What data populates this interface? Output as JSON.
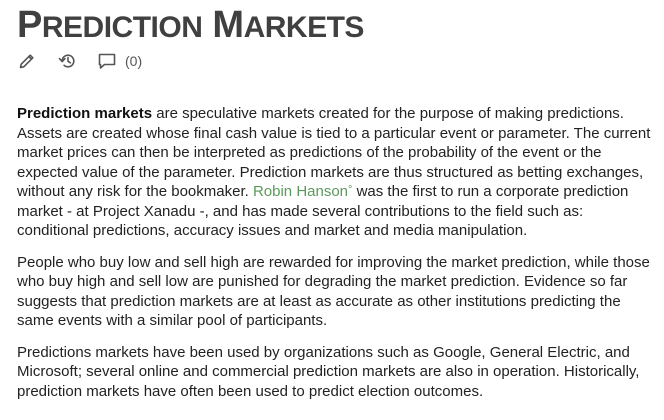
{
  "page": {
    "title_first_initial": "P",
    "title_first_rest": "REDICTION",
    "title_second_initial": "M",
    "title_second_rest": "ARKETS"
  },
  "toolbar": {
    "edit_icon": "pencil-icon",
    "history_icon": "history-icon",
    "comments_icon": "comment-icon",
    "comment_count": "(0)"
  },
  "content": {
    "p1": {
      "bold_term": "Prediction markets",
      "text_before_link": " are speculative markets created for the purpose of making predictions. Assets are created whose final cash value is tied to a particular event or parameter. The current market prices can then be interpreted as predictions of the probability of the event or the expected value of the parameter. Prediction markets are thus structured as betting exchanges, without any risk for the bookmaker. ",
      "link_text": "Robin Hanson",
      "link_marker": "°",
      "text_after_link": " was the first to run a corporate prediction market - at Project Xanadu -, and has made several contributions to the field such as: conditional predictions, accuracy issues and market and media manipulation."
    },
    "p2": "People who buy low and sell high are rewarded for improving the market prediction, while those who buy high and sell low are punished for degrading the market prediction. Evidence so far suggests that prediction markets are at least as accurate as other institutions predicting the same events with a similar pool of participants.",
    "p3": "Predictions markets have been used by organizations such as Google, General Electric, and Microsoft; several online and commercial prediction markets are also in operation. Historically, prediction markets have often been used to predict election outcomes."
  },
  "colors": {
    "title": "#404040",
    "text": "#222222",
    "link": "#5b9a5b",
    "icon": "#555555"
  }
}
